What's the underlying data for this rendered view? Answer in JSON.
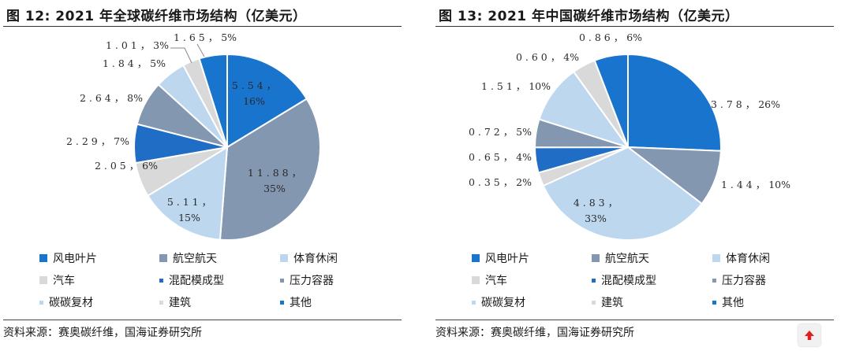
{
  "colors": {
    "风电叶片": "#1874cd",
    "航空航天": "#8497b0",
    "体育休闲": "#bdd7ee",
    "汽车": "#d9d9d9",
    "混配模成型": "#1f6dc4",
    "压力容器": "#8497b0",
    "碳碳复材": "#bdd7ee",
    "建筑": "#d9d9d9",
    "其他": "#1874cd"
  },
  "legend": [
    "风电叶片",
    "航空航天",
    "体育休闲",
    "汽车",
    "混配模成型",
    "压力容器",
    "碳碳复材",
    "建筑",
    "其他"
  ],
  "left": {
    "title": "图 12: 2021 年全球碳纤维市场结构（亿美元）",
    "source": "资料来源：赛奥碳纤维，国海证券研究所"
  },
  "right": {
    "title": "图 13: 2021 年中国碳纤维市场结构（亿美元）",
    "source": "资料来源：赛奥碳纤维，国海证券研究所"
  },
  "chart_data": [
    {
      "type": "pie",
      "title": "图 12: 2021 年全球碳纤维市场结构（亿美元）",
      "categories": [
        "风电叶片",
        "航空航天",
        "体育休闲",
        "汽车",
        "混配模成型",
        "压力容器",
        "碳碳复材",
        "建筑",
        "其他"
      ],
      "values": [
        5.54,
        11.88,
        5.11,
        2.05,
        2.29,
        2.64,
        1.84,
        1.01,
        1.65
      ],
      "labels": [
        "5.54，16%",
        "11.88，35%",
        "5.11，15%",
        "2.05，6%",
        "2.29，7%",
        "2.64，8%",
        "1.84，5%",
        "1.01，3%",
        "1.65，5%"
      ],
      "legend": "bottom"
    },
    {
      "type": "pie",
      "title": "图 13: 2021 年中国碳纤维市场结构（亿美元）",
      "categories": [
        "风电叶片",
        "航空航天",
        "体育休闲",
        "汽车",
        "混配模成型",
        "压力容器",
        "碳碳复材",
        "建筑",
        "其他"
      ],
      "values": [
        3.78,
        1.44,
        4.83,
        0.35,
        0.65,
        0.72,
        1.51,
        0.6,
        0.86
      ],
      "labels": [
        "3.78，26%",
        "1.44，10%",
        "4.83，33%",
        "0.35，2%",
        "0.65，4%",
        "0.72，5%",
        "1.51，10%",
        "0.60，4%",
        "0.86，6%"
      ],
      "legend": "bottom"
    }
  ],
  "ui": {
    "up_icon": "arrow-up-icon"
  }
}
